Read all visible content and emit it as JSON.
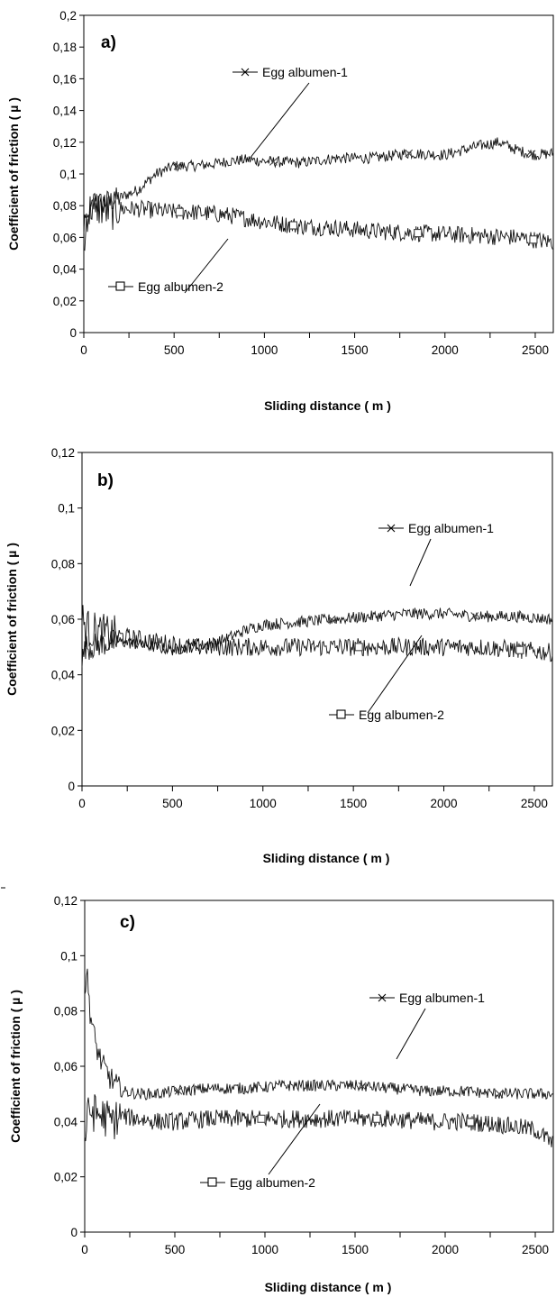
{
  "chart_data": [
    {
      "type": "line",
      "panel_label": "a)",
      "xlabel": "Sliding distance ( m )",
      "ylabel": "Coefficient of friction ( µ )",
      "xlim": [
        0,
        2600
      ],
      "ylim": [
        0,
        0.2
      ],
      "x_ticks": [
        0,
        500,
        1000,
        1500,
        2000,
        2500
      ],
      "x_tick_labels": [
        "0",
        "500",
        "1000",
        "1500",
        "2000",
        "2500"
      ],
      "y_ticks": [
        0,
        0.02,
        0.04,
        0.06,
        0.08,
        0.1,
        0.12,
        0.14,
        0.16,
        0.18,
        0.2
      ],
      "y_tick_labels": [
        "0",
        "0,02",
        "0,04",
        "0,06",
        "0,08",
        "0,1",
        "0,12",
        "0,14",
        "0,16",
        "0,18",
        "0,2"
      ],
      "grid": false,
      "series": [
        {
          "name": "Egg albumen-1",
          "marker": "x",
          "x": [
            0,
            20,
            50,
            100,
            150,
            200,
            300,
            400,
            500,
            600,
            700,
            800,
            900,
            1000,
            1200,
            1400,
            1600,
            1800,
            2000,
            2200,
            2300,
            2400,
            2500,
            2600
          ],
          "y": [
            0.05,
            0.07,
            0.08,
            0.082,
            0.083,
            0.085,
            0.09,
            0.1,
            0.105,
            0.105,
            0.106,
            0.108,
            0.109,
            0.108,
            0.107,
            0.11,
            0.11,
            0.113,
            0.112,
            0.118,
            0.12,
            0.115,
            0.112,
            0.113
          ],
          "marker_x": [
            520,
            1050,
            1800,
            2480
          ]
        },
        {
          "name": "Egg albumen-2",
          "marker": "square",
          "x": [
            0,
            20,
            50,
            100,
            150,
            200,
            300,
            400,
            500,
            600,
            700,
            800,
            900,
            1000,
            1200,
            1400,
            1600,
            1800,
            2000,
            2200,
            2400,
            2600
          ],
          "y": [
            0.07,
            0.075,
            0.08,
            0.078,
            0.076,
            0.078,
            0.078,
            0.077,
            0.076,
            0.076,
            0.075,
            0.074,
            0.072,
            0.07,
            0.067,
            0.066,
            0.064,
            0.063,
            0.062,
            0.061,
            0.06,
            0.057
          ],
          "marker_x": [
            530,
            1160,
            1850,
            2490
          ]
        }
      ]
    },
    {
      "type": "line",
      "panel_label": "b)",
      "xlabel": "Sliding distance ( m )",
      "ylabel": "Coefficient of friction ( µ )",
      "xlim": [
        0,
        2600
      ],
      "ylim": [
        0,
        0.12
      ],
      "x_ticks": [
        0,
        500,
        1000,
        1500,
        2000,
        2500
      ],
      "x_tick_labels": [
        "0",
        "500",
        "1000",
        "1500",
        "2000",
        "2500"
      ],
      "y_ticks": [
        0,
        0.02,
        0.04,
        0.06,
        0.08,
        0.1,
        0.12
      ],
      "y_tick_labels": [
        "0",
        "0,02",
        "0,04",
        "0,06",
        "0,08",
        "0,1",
        "0,12"
      ],
      "grid": false,
      "series": [
        {
          "name": "Egg albumen-1",
          "marker": "x",
          "x": [
            0,
            20,
            50,
            100,
            200,
            300,
            400,
            500,
            600,
            700,
            800,
            900,
            1000,
            1200,
            1400,
            1600,
            1800,
            2000,
            2200,
            2400,
            2600
          ],
          "y": [
            0.045,
            0.05,
            0.05,
            0.051,
            0.052,
            0.051,
            0.05,
            0.049,
            0.05,
            0.051,
            0.053,
            0.056,
            0.058,
            0.059,
            0.06,
            0.061,
            0.062,
            0.062,
            0.061,
            0.061,
            0.06
          ],
          "marker_x": [
            1380,
            2170
          ]
        },
        {
          "name": "Egg albumen-2",
          "marker": "square",
          "x": [
            0,
            20,
            50,
            100,
            200,
            300,
            400,
            500,
            600,
            700,
            800,
            900,
            1000,
            1200,
            1400,
            1600,
            1800,
            2000,
            2200,
            2400,
            2600
          ],
          "y": [
            0.06,
            0.057,
            0.056,
            0.055,
            0.054,
            0.053,
            0.052,
            0.051,
            0.05,
            0.05,
            0.05,
            0.05,
            0.05,
            0.05,
            0.05,
            0.05,
            0.05,
            0.05,
            0.05,
            0.049,
            0.048
          ],
          "marker_x": [
            1530,
            2420
          ]
        }
      ]
    },
    {
      "type": "line",
      "panel_label": "c)",
      "xlabel": "Sliding distance ( m )",
      "ylabel": "Coefficient of friction ( µ )",
      "xlim": [
        0,
        2600
      ],
      "ylim": [
        0,
        0.12
      ],
      "x_ticks": [
        0,
        500,
        1000,
        1500,
        2000,
        2500
      ],
      "x_tick_labels": [
        "0",
        "500",
        "1000",
        "1500",
        "2000",
        "2500"
      ],
      "y_ticks": [
        0,
        0.02,
        0.04,
        0.06,
        0.08,
        0.1,
        0.12
      ],
      "y_tick_labels": [
        "0",
        "0,02",
        "0,04",
        "0,06",
        "0,08",
        "0,1",
        "0,12"
      ],
      "grid": false,
      "series": [
        {
          "name": "Egg albumen-1",
          "marker": "x",
          "x": [
            0,
            10,
            30,
            60,
            100,
            150,
            200,
            300,
            400,
            500,
            700,
            900,
            1100,
            1300,
            1500,
            1700,
            1900,
            2100,
            2300,
            2500,
            2600
          ],
          "y": [
            0.085,
            0.095,
            0.08,
            0.068,
            0.06,
            0.055,
            0.051,
            0.05,
            0.05,
            0.051,
            0.052,
            0.052,
            0.053,
            0.053,
            0.053,
            0.052,
            0.051,
            0.051,
            0.05,
            0.05,
            0.05
          ],
          "marker_x": [
            520,
            1540,
            2300
          ]
        },
        {
          "name": "Egg albumen-2",
          "marker": "square",
          "x": [
            0,
            10,
            30,
            60,
            100,
            150,
            200,
            300,
            400,
            500,
            700,
            900,
            1100,
            1300,
            1500,
            1700,
            1900,
            2100,
            2300,
            2500,
            2600
          ],
          "y": [
            0.032,
            0.04,
            0.044,
            0.043,
            0.042,
            0.04,
            0.042,
            0.041,
            0.04,
            0.04,
            0.041,
            0.041,
            0.041,
            0.041,
            0.041,
            0.041,
            0.04,
            0.04,
            0.039,
            0.037,
            0.032
          ],
          "marker_x": [
            980,
            1620,
            2140
          ]
        }
      ]
    }
  ]
}
